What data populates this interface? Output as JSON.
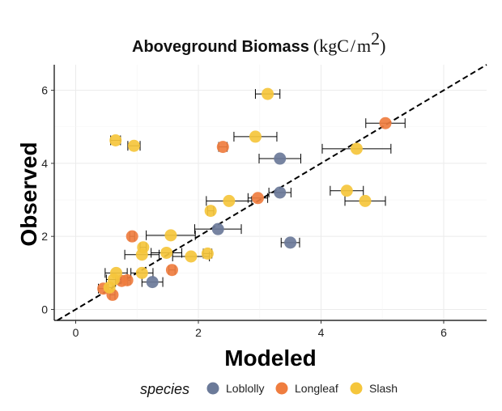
{
  "chart_data": {
    "type": "scatter",
    "title": "Aboveground Biomass",
    "title_unit_prefix": "(kgC",
    "title_unit_slash": "/",
    "title_unit_m": "m",
    "title_unit_exp": "2",
    "title_unit_suffix": ")",
    "xlabel": "Modeled",
    "ylabel": "Observed",
    "xlim": [
      -0.35,
      6.7
    ],
    "ylim": [
      -0.3,
      6.7
    ],
    "xticks": [
      0,
      2,
      4,
      6
    ],
    "yticks": [
      0,
      2,
      4,
      6
    ],
    "grid": true,
    "reference_line": {
      "style": "dashed",
      "slope": 1,
      "intercept": 0
    },
    "legend": {
      "title": "species",
      "position": "bottom"
    },
    "series": [
      {
        "name": "Loblolly",
        "color": "#6b7a99",
        "points": [
          {
            "x": 1.25,
            "y": 0.75,
            "xerr": 0.17
          },
          {
            "x": 2.32,
            "y": 2.2,
            "xerr": 0.38
          },
          {
            "x": 3.33,
            "y": 3.2,
            "xerr": 0.18
          },
          {
            "x": 3.33,
            "y": 4.13,
            "xerr": 0.34
          },
          {
            "x": 3.5,
            "y": 1.83,
            "xerr": 0.15
          }
        ]
      },
      {
        "name": "Longleaf",
        "color": "#ef7d3f",
        "points": [
          {
            "x": 0.45,
            "y": 0.57,
            "xerr": 0.08
          },
          {
            "x": 0.6,
            "y": 0.4,
            "xerr": 0.04
          },
          {
            "x": 0.75,
            "y": 0.78,
            "xerr": 0.1
          },
          {
            "x": 0.84,
            "y": 0.8,
            "xerr": 0.05
          },
          {
            "x": 0.92,
            "y": 2.0,
            "xerr": 0.04
          },
          {
            "x": 1.57,
            "y": 1.08,
            "xerr": 0.05
          },
          {
            "x": 2.4,
            "y": 4.45,
            "xerr": 0.07
          },
          {
            "x": 2.97,
            "y": 3.05,
            "xerr": 0.16
          },
          {
            "x": 5.05,
            "y": 5.1,
            "xerr": 0.32
          }
        ]
      },
      {
        "name": "Slash",
        "color": "#f5c63c",
        "points": [
          {
            "x": 0.55,
            "y": 0.6,
            "xerr": 0.05
          },
          {
            "x": 0.62,
            "y": 0.82,
            "xerr": 0.12
          },
          {
            "x": 0.65,
            "y": 4.63,
            "xerr": 0.08
          },
          {
            "x": 0.66,
            "y": 1.0,
            "xerr": 0.18
          },
          {
            "x": 0.95,
            "y": 4.48,
            "xerr": 0.1
          },
          {
            "x": 1.08,
            "y": 1.0,
            "xerr": 0.18
          },
          {
            "x": 1.08,
            "y": 1.5,
            "xerr": 0.28
          },
          {
            "x": 1.1,
            "y": 1.7,
            "xerr": 0.05
          },
          {
            "x": 1.48,
            "y": 1.55,
            "xerr": 0.25
          },
          {
            "x": 1.55,
            "y": 2.03,
            "xerr": 0.4
          },
          {
            "x": 1.88,
            "y": 1.45,
            "xerr": 0.3
          },
          {
            "x": 2.15,
            "y": 1.53,
            "xerr": 0.07
          },
          {
            "x": 2.2,
            "y": 2.7,
            "xerr": 0.05
          },
          {
            "x": 2.5,
            "y": 2.97,
            "xerr": 0.37
          },
          {
            "x": 2.93,
            "y": 4.73,
            "xerr": 0.35
          },
          {
            "x": 3.13,
            "y": 5.9,
            "xerr": 0.2
          },
          {
            "x": 4.42,
            "y": 3.25,
            "xerr": 0.27
          },
          {
            "x": 4.58,
            "y": 4.4,
            "xerr": 0.56
          },
          {
            "x": 4.72,
            "y": 2.97,
            "xerr": 0.33
          }
        ]
      }
    ]
  }
}
